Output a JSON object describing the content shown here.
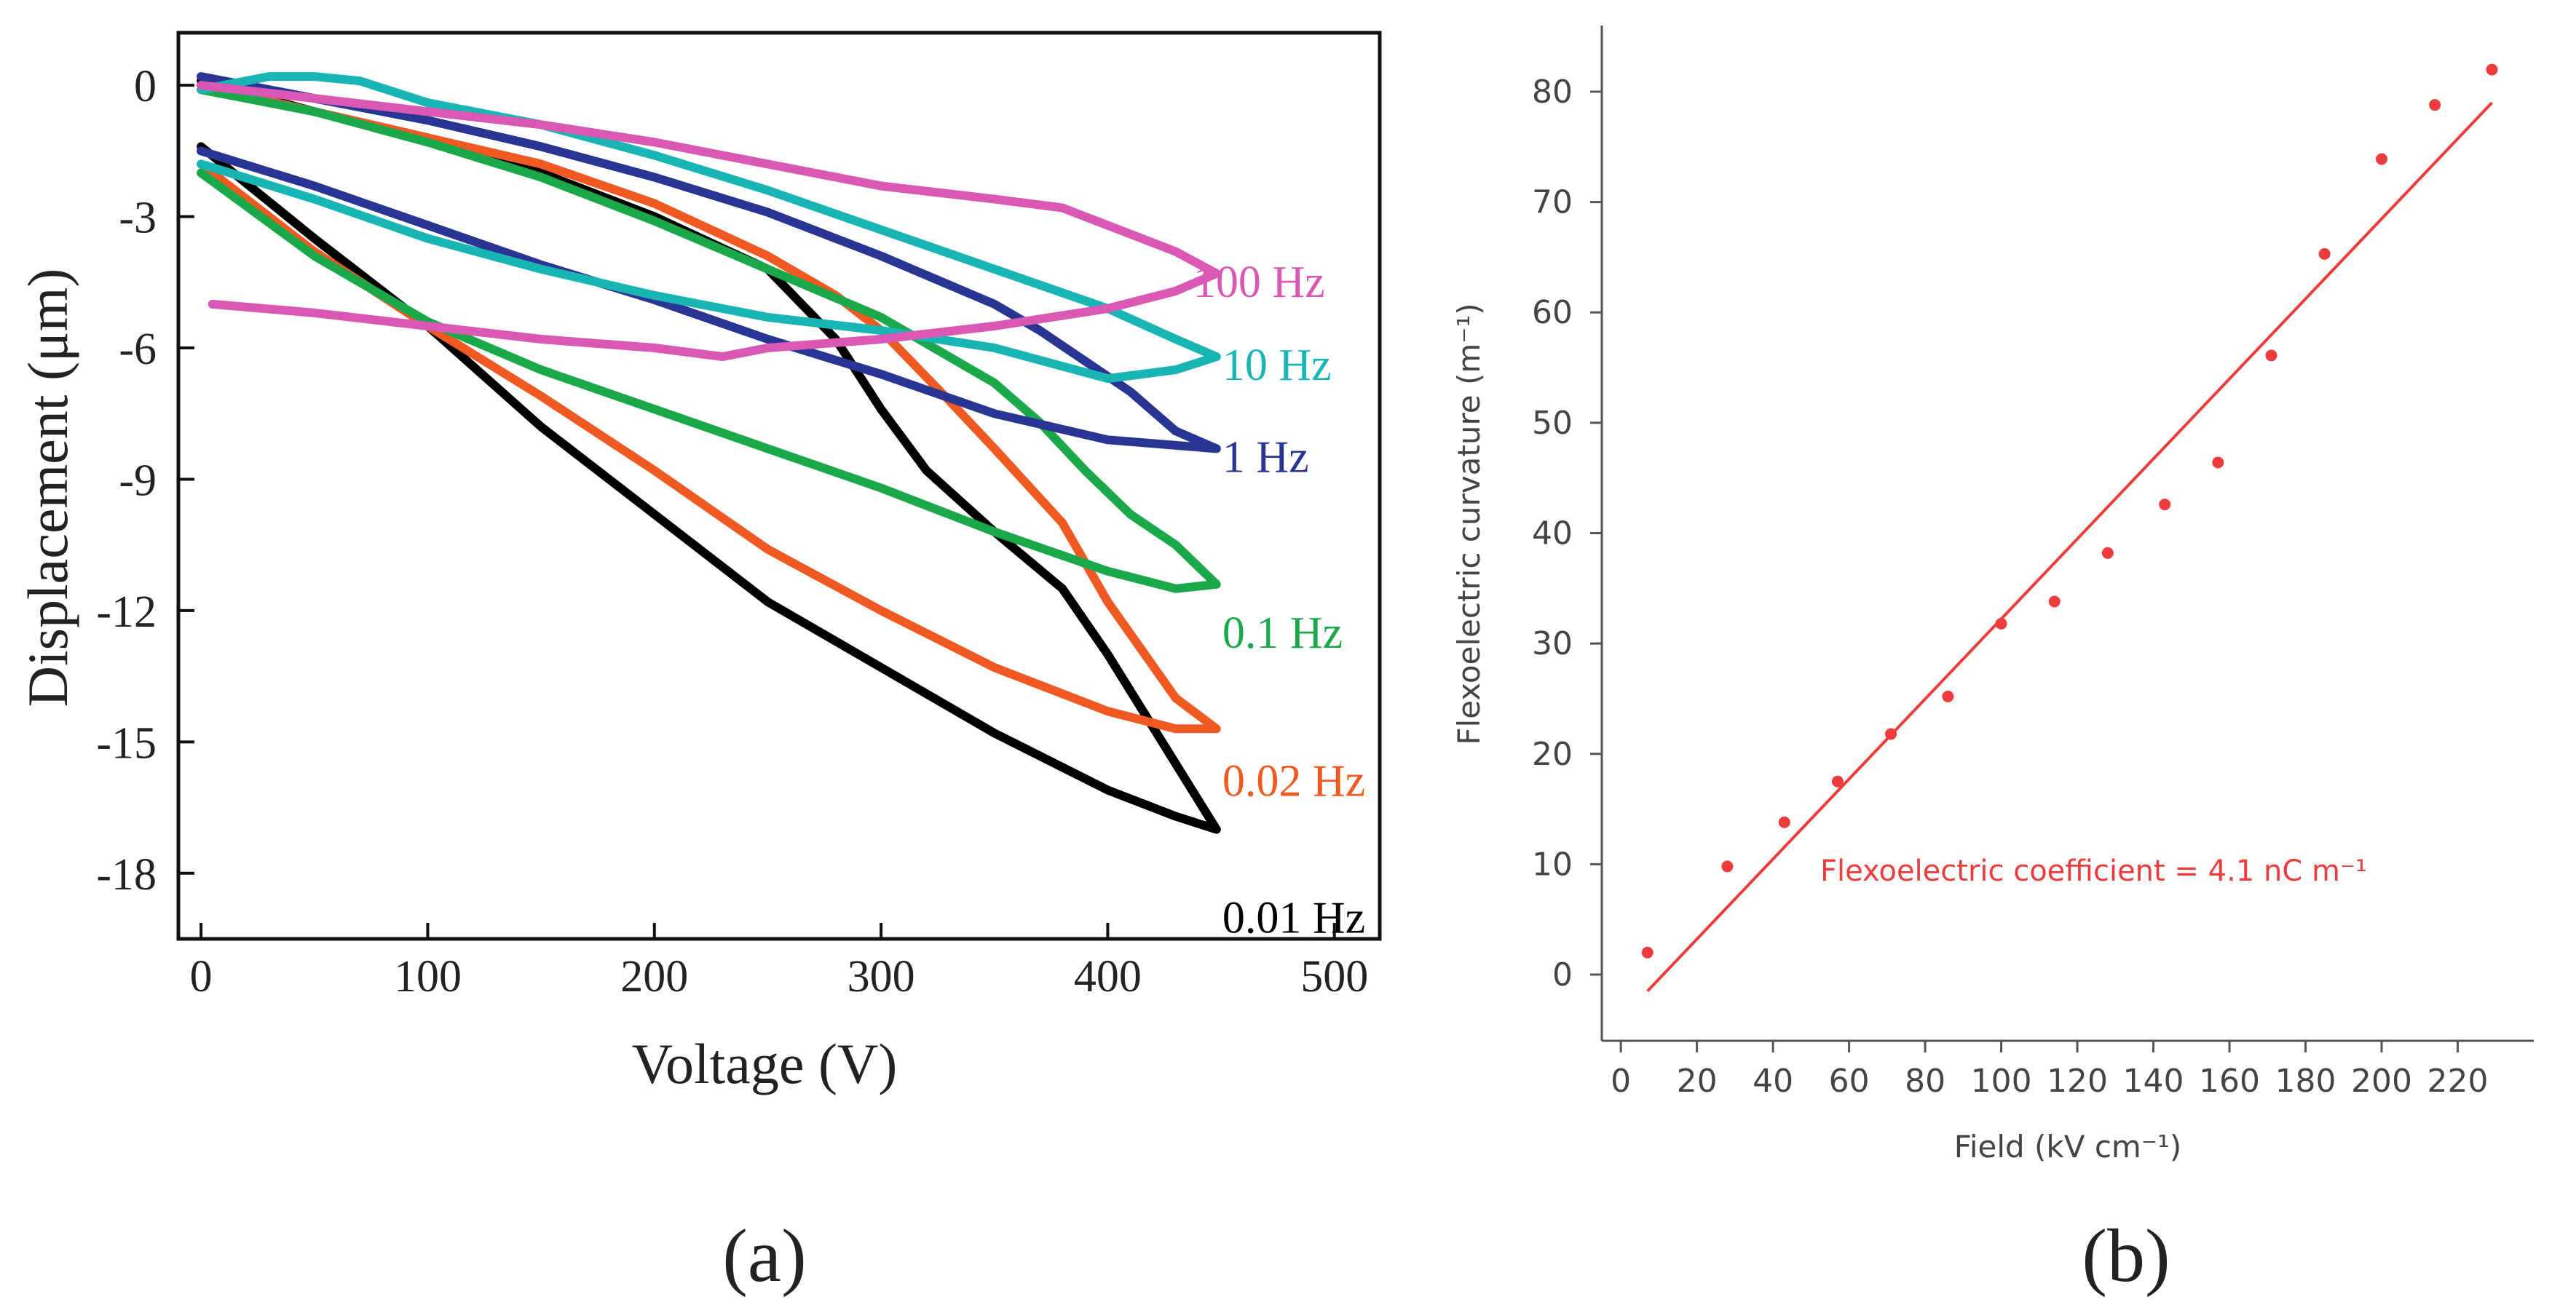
{
  "chart_data": [
    {
      "type": "line",
      "panel_label": "(a)",
      "xlabel": "Voltage (V)",
      "ylabel": "Displacement (μm)",
      "xlim": [
        -10,
        520
      ],
      "ylim": [
        -19.5,
        1.2
      ],
      "xticks": [
        0,
        100,
        200,
        300,
        400,
        500
      ],
      "yticks": [
        0,
        -3,
        -6,
        -9,
        -12,
        -15,
        -18
      ],
      "grid": false,
      "legend": "inline labels at right end of each loop",
      "series": [
        {
          "name": "0.01 Hz",
          "color": "#000000",
          "lower": {
            "x": [
              0,
              50,
              100,
              150,
              200,
              250,
              300,
              350,
              400,
              430,
              448
            ],
            "y": [
              -1.4,
              -3.5,
              -5.5,
              -7.8,
              -9.8,
              -11.8,
              -13.3,
              -14.8,
              -16.1,
              -16.7,
              -17.0
            ]
          },
          "upper": {
            "x": [
              448,
              430,
              400,
              380,
              350,
              320,
              300,
              280,
              250,
              200,
              150,
              100,
              50,
              0
            ],
            "y": [
              -17.0,
              -15.5,
              -13.0,
              -11.5,
              -10.2,
              -8.8,
              -7.4,
              -5.8,
              -4.2,
              -3.0,
              -2.0,
              -1.2,
              -0.6,
              0.1
            ]
          }
        },
        {
          "name": "0.02 Hz",
          "color": "#f05a22",
          "lower": {
            "x": [
              0,
              50,
              100,
              150,
              200,
              250,
              300,
              350,
              400,
              430,
              448
            ],
            "y": [
              -1.8,
              -3.8,
              -5.5,
              -7.1,
              -8.8,
              -10.6,
              -12.0,
              -13.3,
              -14.3,
              -14.7,
              -14.7
            ]
          },
          "upper": {
            "x": [
              448,
              430,
              400,
              380,
              350,
              330,
              300,
              280,
              250,
              200,
              150,
              100,
              50,
              0
            ],
            "y": [
              -14.7,
              -14.0,
              -11.8,
              -10.0,
              -8.3,
              -7.2,
              -5.6,
              -4.8,
              -3.9,
              -2.7,
              -1.8,
              -1.2,
              -0.6,
              0.0
            ]
          }
        },
        {
          "name": "0.1 Hz",
          "color": "#1aa84a",
          "lower": {
            "x": [
              0,
              50,
              100,
              150,
              200,
              250,
              300,
              350,
              400,
              430,
              448
            ],
            "y": [
              -2.0,
              -3.9,
              -5.4,
              -6.5,
              -7.4,
              -8.3,
              -9.2,
              -10.2,
              -11.1,
              -11.5,
              -11.4
            ]
          },
          "upper": {
            "x": [
              448,
              430,
              410,
              390,
              370,
              350,
              300,
              250,
              200,
              150,
              100,
              50,
              0
            ],
            "y": [
              -11.4,
              -10.5,
              -9.8,
              -8.8,
              -7.7,
              -6.8,
              -5.3,
              -4.2,
              -3.1,
              -2.1,
              -1.3,
              -0.6,
              -0.1
            ]
          }
        },
        {
          "name": "1 Hz",
          "color": "#283593",
          "lower": {
            "x": [
              0,
              50,
              100,
              150,
              200,
              250,
              300,
              350,
              400,
              448
            ],
            "y": [
              -1.5,
              -2.3,
              -3.2,
              -4.1,
              -4.9,
              -5.8,
              -6.6,
              -7.5,
              -8.1,
              -8.3
            ]
          },
          "upper": {
            "x": [
              448,
              430,
              410,
              390,
              370,
              350,
              300,
              250,
              200,
              150,
              100,
              50,
              0
            ],
            "y": [
              -8.3,
              -7.9,
              -7.0,
              -6.3,
              -5.6,
              -5.0,
              -3.9,
              -2.9,
              -2.1,
              -1.4,
              -0.8,
              -0.3,
              0.2
            ]
          }
        },
        {
          "name": "10 Hz",
          "color": "#19b5b5",
          "lower": {
            "x": [
              0,
              50,
              100,
              150,
              200,
              250,
              300,
              350,
              400,
              430,
              448
            ],
            "y": [
              -1.8,
              -2.6,
              -3.5,
              -4.2,
              -4.8,
              -5.3,
              -5.6,
              -6.0,
              -6.7,
              -6.5,
              -6.2
            ]
          },
          "upper": {
            "x": [
              448,
              430,
              400,
              350,
              300,
              250,
              200,
              150,
              100,
              70,
              50,
              30,
              10,
              0
            ],
            "y": [
              -6.2,
              -5.8,
              -5.1,
              -4.2,
              -3.3,
              -2.4,
              -1.6,
              -0.9,
              -0.4,
              0.1,
              0.2,
              0.2,
              0.0,
              -0.1
            ]
          }
        },
        {
          "name": "100 Hz",
          "color": "#d958b4",
          "lower": {
            "x": [
              5,
              50,
              100,
              150,
              200,
              230,
              250,
              300,
              350,
              400,
              430,
              448
            ],
            "y": [
              -5.0,
              -5.2,
              -5.5,
              -5.8,
              -6.0,
              -6.2,
              -6.0,
              -5.8,
              -5.5,
              -5.1,
              -4.7,
              -4.3
            ]
          },
          "upper": {
            "x": [
              448,
              430,
              400,
              380,
              350,
              300,
              250,
              200,
              150,
              100,
              50,
              0
            ],
            "y": [
              -4.3,
              -3.8,
              -3.2,
              -2.8,
              -2.6,
              -2.3,
              -1.8,
              -1.3,
              -0.9,
              -0.6,
              -0.3,
              0.0
            ]
          }
        }
      ]
    },
    {
      "type": "scatter",
      "panel_label": "(b)",
      "xlabel": "Field (kV cm⁻¹)",
      "ylabel": "Flexoelectric curvature (m⁻¹)",
      "xlim": [
        -5,
        240
      ],
      "ylim": [
        -6,
        86
      ],
      "xticks": [
        0,
        20,
        40,
        60,
        80,
        100,
        120,
        140,
        160,
        180,
        200,
        220
      ],
      "yticks": [
        0,
        10,
        20,
        30,
        40,
        50,
        60,
        70,
        80
      ],
      "grid": false,
      "color": "#ee3b3b",
      "points": {
        "x": [
          7,
          28,
          43,
          57,
          71,
          86,
          100,
          114,
          128,
          143,
          157,
          171,
          185,
          200,
          214,
          229
        ],
        "y": [
          2.0,
          9.8,
          13.8,
          17.5,
          21.8,
          25.2,
          31.8,
          33.8,
          38.2,
          42.6,
          46.4,
          56.1,
          65.3,
          73.9,
          78.8,
          82.0
        ]
      },
      "fit_line": {
        "x": [
          7,
          229
        ],
        "y": [
          -1.5,
          79.0
        ]
      },
      "annotation": "Flexoelectric coefficient = 4.1 nC m⁻¹"
    }
  ]
}
